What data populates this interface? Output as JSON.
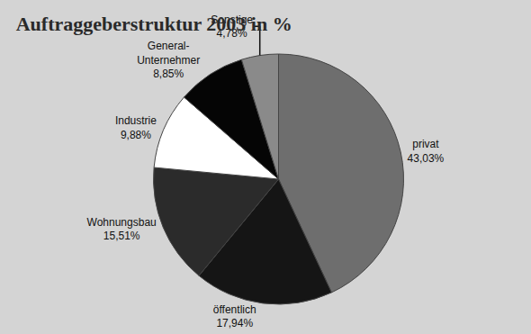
{
  "chart_data": {
    "type": "pie",
    "title": "Auftraggeberstruktur 2003 in %",
    "categories": [
      "privat",
      "öffentlich",
      "Wohnungsbau",
      "Industrie",
      "General-Unternehmer",
      "Sonstige"
    ],
    "values": [
      43.03,
      17.94,
      15.51,
      9.88,
      8.85,
      4.78
    ],
    "value_labels": [
      "43,03%",
      "17,94%",
      "15,51%",
      "9,88%",
      "8,85%",
      "4,78%"
    ],
    "colors": [
      "#6e6e6e",
      "#151515",
      "#2b2b2b",
      "#ffffff",
      "#050505",
      "#8a8a8a"
    ],
    "data_labels": true
  }
}
